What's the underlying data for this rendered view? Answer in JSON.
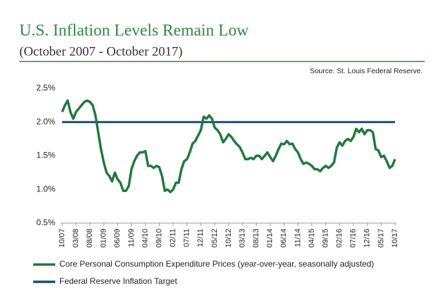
{
  "chart_data": {
    "type": "line",
    "title": "U.S. Inflation Levels Remain Low",
    "subtitle": "(October 2007 - October 2017)",
    "source": "Source: St. Louis Federal Reserve.",
    "categories": [
      "10/07",
      null,
      null,
      null,
      null,
      "03/08",
      null,
      null,
      null,
      null,
      "08/08",
      null,
      null,
      null,
      null,
      "01/09",
      null,
      null,
      null,
      null,
      "06/09",
      null,
      null,
      null,
      null,
      "11/09",
      null,
      null,
      null,
      null,
      "04/10",
      null,
      null,
      null,
      null,
      "09/10",
      null,
      null,
      null,
      null,
      "02/11",
      null,
      null,
      null,
      null,
      "07/11",
      null,
      null,
      null,
      null,
      "12/11",
      null,
      null,
      null,
      null,
      "05/12",
      null,
      null,
      null,
      null,
      "10/12",
      null,
      null,
      null,
      null,
      "03/13",
      null,
      null,
      null,
      null,
      "08/13",
      null,
      null,
      null,
      null,
      "01/14",
      null,
      null,
      null,
      null,
      "06/14",
      null,
      null,
      null,
      null,
      "11/14",
      null,
      null,
      null,
      null,
      "04/15",
      null,
      null,
      null,
      null,
      "09/15",
      null,
      null,
      null,
      null,
      "02/16",
      null,
      null,
      null,
      null,
      "07/16",
      null,
      null,
      null,
      null,
      "12/16",
      null,
      null,
      null,
      null,
      "05/17",
      null,
      null,
      null,
      null,
      "10/17"
    ],
    "series": [
      {
        "name": "Core Personal Consumption Expenditure Prices (year-over-year, seasonally adjusted)",
        "color": "#1f7a3c",
        "values": [
          2.15,
          2.25,
          2.32,
          2.15,
          2.05,
          2.15,
          2.2,
          2.25,
          2.3,
          2.32,
          2.3,
          2.25,
          2.1,
          1.85,
          1.6,
          1.4,
          1.25,
          1.2,
          1.12,
          1.25,
          1.15,
          1.1,
          0.98,
          0.98,
          1.05,
          1.3,
          1.42,
          1.5,
          1.55,
          1.55,
          1.57,
          1.35,
          1.35,
          1.32,
          1.35,
          1.33,
          1.2,
          0.98,
          1.0,
          0.96,
          1.0,
          1.1,
          1.1,
          1.3,
          1.42,
          1.45,
          1.55,
          1.68,
          1.72,
          1.8,
          1.88,
          2.08,
          2.05,
          2.1,
          2.05,
          1.92,
          1.88,
          1.82,
          1.7,
          1.75,
          1.82,
          1.78,
          1.72,
          1.67,
          1.63,
          1.55,
          1.45,
          1.45,
          1.47,
          1.45,
          1.5,
          1.5,
          1.45,
          1.5,
          1.55,
          1.48,
          1.42,
          1.5,
          1.6,
          1.68,
          1.67,
          1.72,
          1.67,
          1.68,
          1.6,
          1.55,
          1.45,
          1.38,
          1.4,
          1.38,
          1.35,
          1.3,
          1.3,
          1.27,
          1.32,
          1.35,
          1.32,
          1.35,
          1.4,
          1.62,
          1.7,
          1.65,
          1.72,
          1.75,
          1.72,
          1.78,
          1.9,
          1.85,
          1.9,
          1.82,
          1.88,
          1.88,
          1.85,
          1.6,
          1.58,
          1.48,
          1.5,
          1.42,
          1.32,
          1.35,
          1.45
        ]
      }
    ],
    "reference_line": {
      "name": "Federal Reserve Inflation Target",
      "value": 2.0,
      "color": "#1b4d6e"
    },
    "ylim": [
      0.5,
      2.5
    ],
    "yticks": [
      {
        "value": 0.5,
        "label": "0.5%"
      },
      {
        "value": 1.0,
        "label": "1.0%"
      },
      {
        "value": 1.5,
        "label": "1.5%"
      },
      {
        "value": 2.0,
        "label": "2.0%"
      },
      {
        "value": 2.5,
        "label": "2.5%"
      }
    ],
    "grid": false,
    "legend": "bottom"
  }
}
